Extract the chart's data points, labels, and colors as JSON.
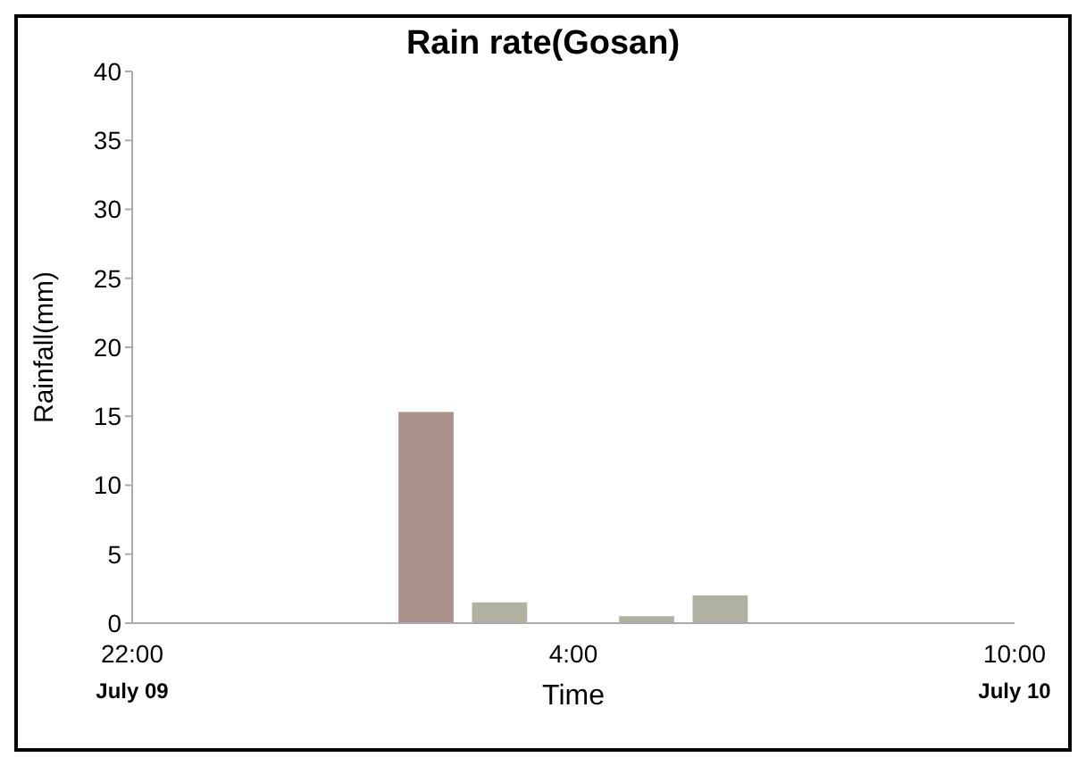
{
  "chart_data": {
    "type": "bar",
    "title": "Rain rate(Gosan)",
    "xlabel": "Time",
    "ylabel": "Rainfall(mm)",
    "x": [
      "--07-10T02:00",
      "--07-10T03:00",
      "--07-10T05:00",
      "--07-10T06:00"
    ],
    "values": [
      15.3,
      1.5,
      0.5,
      2
    ],
    "colors": [
      "#a8928a",
      "#b0b1a1",
      "#b0b1a1",
      "#b0b1a1"
    ],
    "xlim": [
      "--07-09T22:00",
      "--07-10T10:00"
    ],
    "xticks": [
      {
        "value": "--07-09T22:00",
        "label": "22:00\nJuly 09"
      },
      {
        "value": "--07-10T04:00",
        "label": "4:00"
      },
      {
        "value": "--07-10T10:00",
        "label": "10:00\nJuly 10"
      }
    ],
    "ylim": [
      0,
      40
    ],
    "yticks": [
      0,
      5,
      10,
      15,
      20,
      25,
      30,
      35,
      40
    ]
  }
}
